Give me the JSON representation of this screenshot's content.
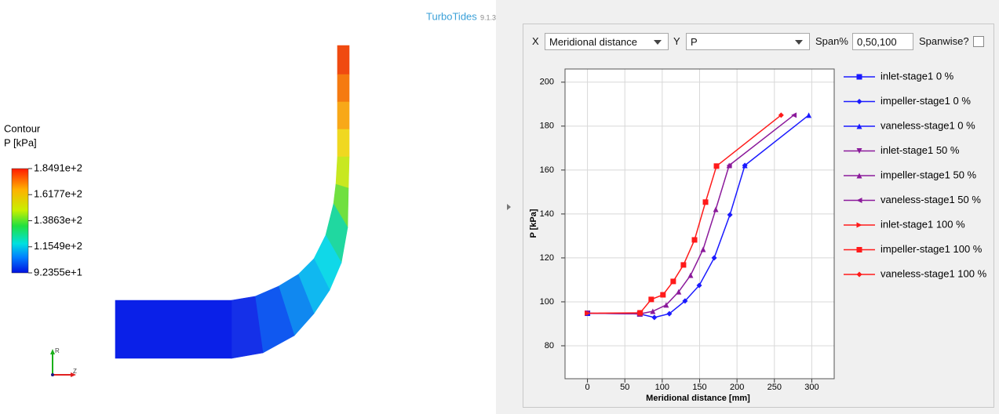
{
  "app": {
    "brand": "TurboTides",
    "version": "9.1.3"
  },
  "contour": {
    "title": "Contour",
    "quantity": "P [kPa]",
    "labels": [
      "1.8491e+2",
      "1.6177e+2",
      "1.3863e+2",
      "1.1549e+2",
      "9.2355e+1"
    ]
  },
  "triad": {
    "up": "R",
    "right": "Z"
  },
  "controls": {
    "x_label": "X",
    "x_value": "Meridional distance",
    "y_label": "Y",
    "y_value": "P",
    "span_label": "Span%",
    "span_value": "0,50,100",
    "spanwise_label": "Spanwise?"
  },
  "chart_data": {
    "type": "line",
    "x_label": "Meridional distance [mm]",
    "y_label": "P [kPa]",
    "xlim": [
      -30,
      330
    ],
    "ylim": [
      65,
      206
    ],
    "xticks": [
      0,
      50,
      100,
      150,
      200,
      250,
      300
    ],
    "yticks": [
      80,
      100,
      120,
      140,
      160,
      180,
      200
    ],
    "grid": true,
    "legend": "right",
    "series": [
      {
        "name": "inlet-stage1 0 %",
        "color": "#1a1aff",
        "marker": "square",
        "x": [
          0,
          70
        ],
        "values": [
          94.8,
          94.5
        ]
      },
      {
        "name": "impeller-stage1 0 %",
        "color": "#1a1aff",
        "marker": "diamond",
        "x": [
          70,
          89.5,
          109.5,
          130.5,
          149.5,
          169.5,
          190.5,
          210.5
        ],
        "values": [
          94.5,
          92.9,
          94.6,
          100.4,
          107.5,
          120,
          139.6,
          162.1
        ]
      },
      {
        "name": "vaneless-stage1 0 %",
        "color": "#1a1aff",
        "marker": "triangle-up",
        "x": [
          210.5,
          296
        ],
        "values": [
          162.1,
          185
        ]
      },
      {
        "name": "inlet-stage1 50 %",
        "color": "#8b1a9b",
        "marker": "triangle-down",
        "x": [
          0,
          70
        ],
        "values": [
          94.8,
          94.5
        ]
      },
      {
        "name": "impeller-stage1 50 %",
        "color": "#8b1a9b",
        "marker": "triangle-up",
        "x": [
          70,
          87.4,
          105.3,
          122,
          137.9,
          154.7,
          171.6,
          189.5
        ],
        "values": [
          94.5,
          95.7,
          98.6,
          104.6,
          112.1,
          123.9,
          142.1,
          162.1
        ]
      },
      {
        "name": "vaneless-stage1 50 %",
        "color": "#8b1a9b",
        "marker": "triangle-left",
        "x": [
          189.5,
          276
        ],
        "values": [
          162.1,
          185
        ]
      },
      {
        "name": "inlet-stage1 100 %",
        "color": "#ff1a1a",
        "marker": "triangle-right",
        "x": [
          0,
          70.5
        ],
        "values": [
          94.8,
          95
        ]
      },
      {
        "name": "impeller-stage1 100 %",
        "color": "#ff1a1a",
        "marker": "square",
        "x": [
          70.5,
          85.3,
          101,
          114.7,
          128.4,
          143.2,
          157.9,
          172.6
        ],
        "values": [
          95,
          101.1,
          103.2,
          109.3,
          116.8,
          128.2,
          145.4,
          161.8
        ]
      },
      {
        "name": "vaneless-stage1 100 %",
        "color": "#ff1a1a",
        "marker": "diamond",
        "x": [
          172.6,
          259
        ],
        "values": [
          161.8,
          185
        ]
      }
    ]
  }
}
